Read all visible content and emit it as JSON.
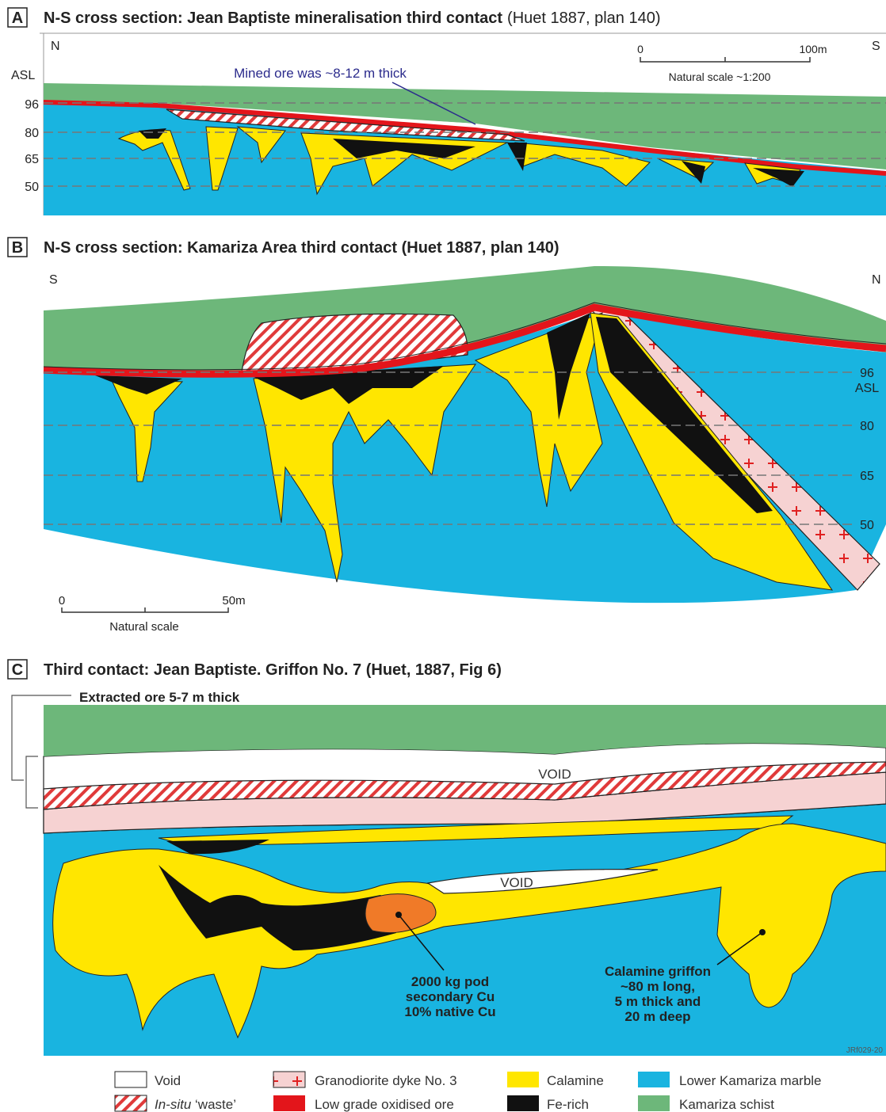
{
  "panels": [
    {
      "letter": "A",
      "title": "N-S cross section: Jean Baptiste mineralisation third contact",
      "title_note": "(Huet 1887, plan 140)",
      "north": "N",
      "south": "S",
      "datum": "ASL",
      "elevations": [
        "96",
        "80",
        "65",
        "50"
      ],
      "annotation": "Mined ore was ~8-12 m thick",
      "scale": {
        "start": "0",
        "end": "100m",
        "caption": "Natural scale ~1:200"
      }
    },
    {
      "letter": "B",
      "title": "N-S cross section: Kamariza Area third contact (Huet 1887, plan 140)",
      "south": "S",
      "north": "N",
      "datum": "ASL",
      "elevations": [
        "96",
        "80",
        "65",
        "50"
      ],
      "scale": {
        "start": "0",
        "end": "50m",
        "caption": "Natural scale"
      }
    },
    {
      "letter": "C",
      "title": "Third contact: Jean Baptiste. Griffon No. 7 (Huet, 1887, Fig 6)",
      "bracket_label": "Extracted ore 5-7 m thick",
      "void_labels": [
        "VOID",
        "VOID"
      ],
      "pod_note": [
        "2000 kg pod",
        "secondary Cu",
        "10% native Cu"
      ],
      "griffon_note": [
        "Calamine griffon",
        "~80 m long,",
        "5 m thick and",
        "20 m deep"
      ],
      "figure_id": "JRf029-20"
    }
  ],
  "legend": [
    {
      "label": "Void"
    },
    {
      "label_italic": "In-situ",
      "label": " ‘waste’"
    },
    {
      "label": "Granodiorite dyke No. 3"
    },
    {
      "label": "Low grade oxidised ore"
    },
    {
      "label": "Calamine"
    },
    {
      "label": "Fe-rich"
    },
    {
      "label": "Lower Kamariza marble"
    },
    {
      "label": "Kamariza schist"
    }
  ]
}
